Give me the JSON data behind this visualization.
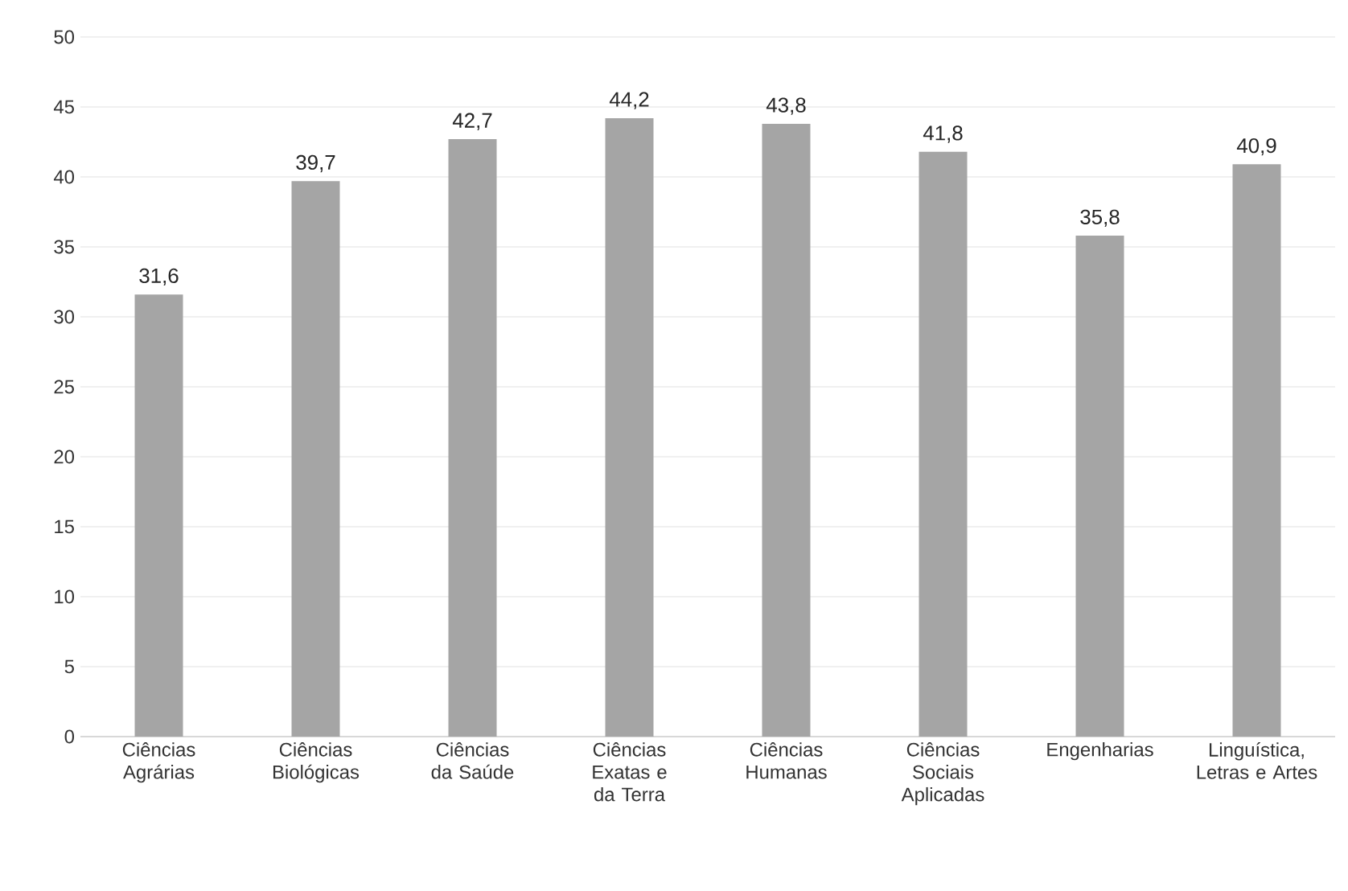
{
  "chart_data": {
    "type": "bar",
    "categories": [
      "Ciências Agrárias",
      "Ciências Biológicas",
      "Ciências da Saúde",
      "Ciências Exatas e da Terra",
      "Ciências Humanas",
      "Ciências Sociais Aplicadas",
      "Engenharias",
      "Linguística, Letras e Artes"
    ],
    "values": [
      31.6,
      39.7,
      42.7,
      44.2,
      43.8,
      41.8,
      35.8,
      40.9
    ],
    "value_labels": [
      "31,6",
      "39,7",
      "42,7",
      "44,2",
      "43,8",
      "41,8",
      "35,8",
      "40,9"
    ],
    "color": "#a5a5a5",
    "ylim": [
      0,
      50
    ],
    "yticks": [
      0,
      5,
      10,
      15,
      20,
      25,
      30,
      35,
      40,
      45,
      50
    ],
    "grid": "y"
  }
}
